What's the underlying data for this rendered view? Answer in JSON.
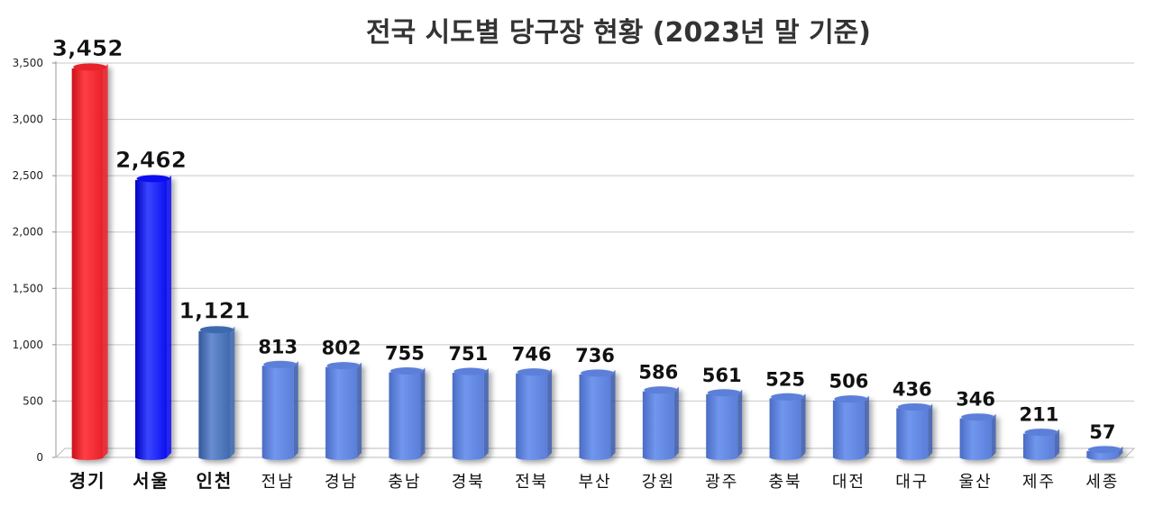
{
  "chart_data": {
    "type": "bar",
    "title": "전국 시도별 당구장 현황 (2023년 말 기준)",
    "xlabel": "",
    "ylabel": "",
    "ylim": [
      0,
      3500
    ],
    "yticks": [
      0,
      500,
      1000,
      1500,
      2000,
      2500,
      3000,
      3500
    ],
    "ytick_labels": [
      "0",
      "500",
      "1,000",
      "1,500",
      "2,000",
      "2,500",
      "3,000",
      "3,500"
    ],
    "grid": true,
    "legend": "none",
    "categories": [
      "경기",
      "서울",
      "인천",
      "전남",
      "경남",
      "충남",
      "경북",
      "전북",
      "부산",
      "강원",
      "광주",
      "충북",
      "대전",
      "대구",
      "울산",
      "제주",
      "세종"
    ],
    "values": [
      3452,
      2462,
      1121,
      813,
      802,
      755,
      751,
      746,
      736,
      586,
      561,
      525,
      506,
      436,
      346,
      211,
      57
    ],
    "value_labels": [
      "3,452",
      "2,462",
      "1,121",
      "813",
      "802",
      "755",
      "751",
      "746",
      "736",
      "586",
      "561",
      "525",
      "506",
      "436",
      "346",
      "211",
      "57"
    ],
    "colors": {
      "default_bar": "#5B7FD9",
      "highlight": [
        "#E8202A",
        "#0B10F0",
        "#3E6AAE"
      ],
      "label_highlight": [
        "#C9282E",
        "#1616D6",
        "#3E6AAE"
      ],
      "grid": "#C8C8C8"
    }
  }
}
